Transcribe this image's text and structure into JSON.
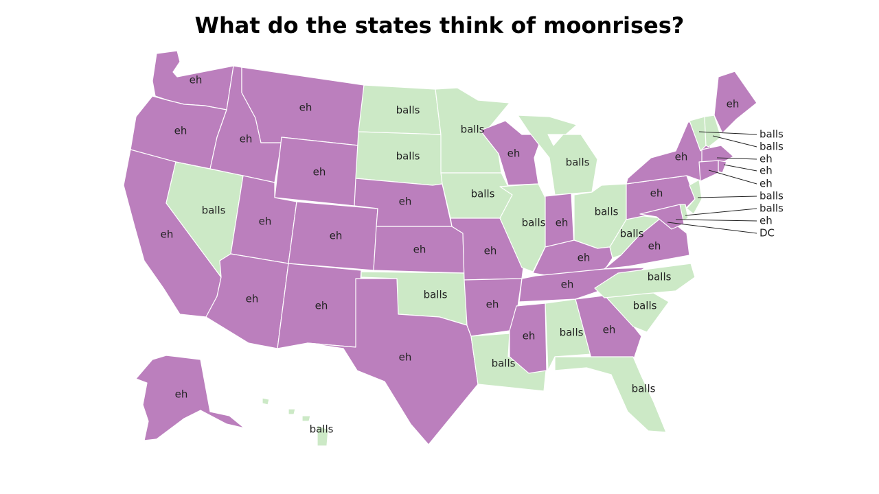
{
  "title": "What do the states think of moonrises?",
  "colors": {
    "eh": "#bb7fbd",
    "balls": "#cce9c6",
    "border": "#ffffff",
    "text": "#222222"
  },
  "states": [
    {
      "id": "WA",
      "value": "eh"
    },
    {
      "id": "OR",
      "value": "eh"
    },
    {
      "id": "CA",
      "value": "eh"
    },
    {
      "id": "ID",
      "value": "eh"
    },
    {
      "id": "NV",
      "value": "balls"
    },
    {
      "id": "MT",
      "value": "eh"
    },
    {
      "id": "WY",
      "value": "eh"
    },
    {
      "id": "UT",
      "value": "eh"
    },
    {
      "id": "AZ",
      "value": "eh"
    },
    {
      "id": "CO",
      "value": "eh"
    },
    {
      "id": "NM",
      "value": "eh"
    },
    {
      "id": "ND",
      "value": "balls"
    },
    {
      "id": "SD",
      "value": "balls"
    },
    {
      "id": "NE",
      "value": "eh"
    },
    {
      "id": "KS",
      "value": "eh"
    },
    {
      "id": "OK",
      "value": "balls"
    },
    {
      "id": "TX",
      "value": "eh"
    },
    {
      "id": "MN",
      "value": "balls"
    },
    {
      "id": "IA",
      "value": "balls"
    },
    {
      "id": "MO",
      "value": "eh"
    },
    {
      "id": "AR",
      "value": "eh"
    },
    {
      "id": "LA",
      "value": "balls"
    },
    {
      "id": "WI",
      "value": "eh"
    },
    {
      "id": "IL",
      "value": "balls"
    },
    {
      "id": "MI",
      "value": "balls"
    },
    {
      "id": "IN",
      "value": "eh"
    },
    {
      "id": "OH",
      "value": "balls"
    },
    {
      "id": "KY",
      "value": "eh"
    },
    {
      "id": "TN",
      "value": "eh"
    },
    {
      "id": "MS",
      "value": "eh"
    },
    {
      "id": "AL",
      "value": "balls"
    },
    {
      "id": "GA",
      "value": "eh"
    },
    {
      "id": "FL",
      "value": "balls"
    },
    {
      "id": "SC",
      "value": "balls"
    },
    {
      "id": "NC",
      "value": "balls"
    },
    {
      "id": "VA",
      "value": "eh"
    },
    {
      "id": "WV",
      "value": "balls"
    },
    {
      "id": "PA",
      "value": "eh"
    },
    {
      "id": "NY",
      "value": "eh"
    },
    {
      "id": "ME",
      "value": "eh"
    },
    {
      "id": "AK",
      "value": "eh"
    },
    {
      "id": "HI",
      "value": "balls"
    }
  ],
  "callouts": [
    {
      "id": "VT",
      "value": "balls"
    },
    {
      "id": "NH",
      "value": "balls"
    },
    {
      "id": "MA",
      "value": "eh"
    },
    {
      "id": "RI",
      "value": "eh"
    },
    {
      "id": "CT",
      "value": "eh"
    },
    {
      "id": "NJ",
      "value": "balls"
    },
    {
      "id": "DE",
      "value": "balls"
    },
    {
      "id": "MD",
      "value": "eh"
    },
    {
      "id": "DC",
      "value": "DC"
    }
  ]
}
